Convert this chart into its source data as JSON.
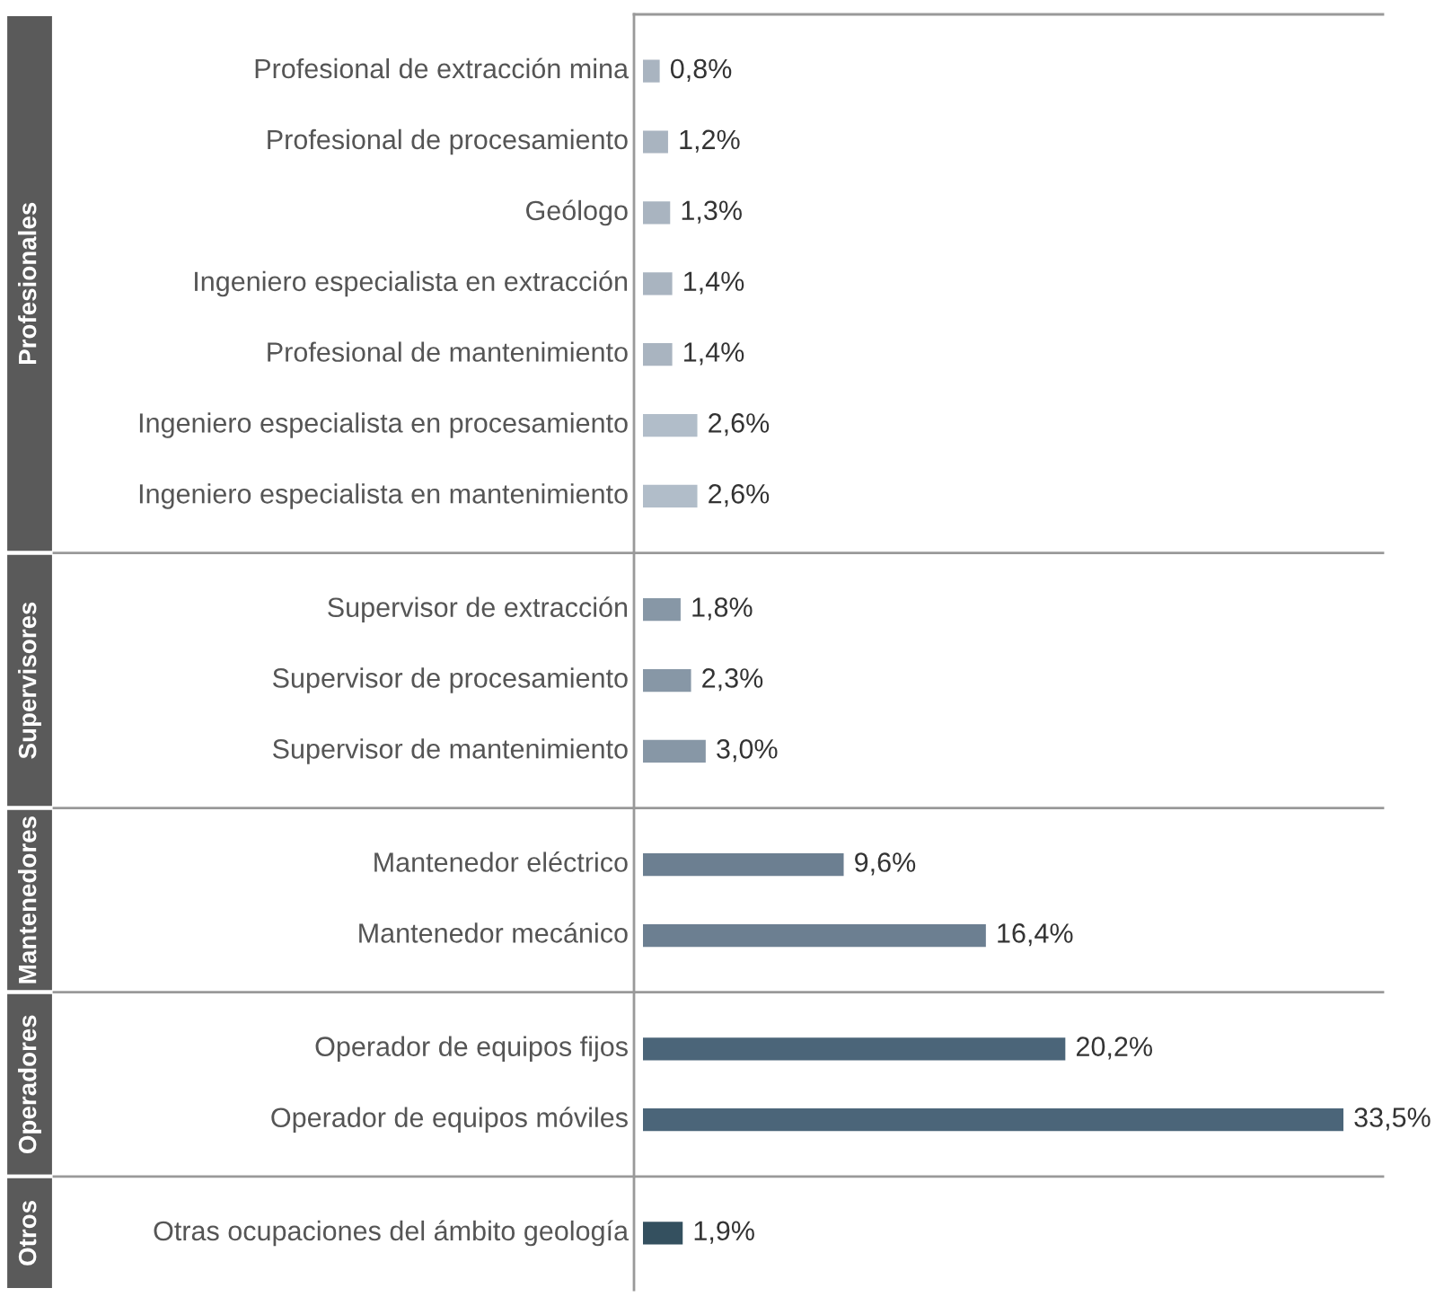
{
  "chart_data": [
    {
      "type": "bar",
      "orientation": "horizontal",
      "ylabel": "Profesionales",
      "categories": [
        "Profesional de extracción mina",
        "Profesional de procesamiento",
        "Geólogo",
        "Ingeniero especialista en extracción",
        "Profesional de mantenimiento",
        "Ingeniero especialista en procesamiento",
        "Ingeniero especialista en mantenimiento"
      ],
      "values": [
        0.8,
        1.2,
        1.3,
        1.4,
        1.4,
        2.6,
        2.6
      ],
      "value_labels": [
        "0,8%",
        "1,2%",
        "1,3%",
        "1,4%",
        "1,4%",
        "2,6%",
        "2,6%"
      ],
      "colors": [
        "#a9b4c0",
        "#a9b4c0",
        "#a9b4c0",
        "#a9b4c0",
        "#a9b4c0",
        "#b1bdc9",
        "#b1bdc9"
      ]
    },
    {
      "type": "bar",
      "orientation": "horizontal",
      "ylabel": "Supervisores",
      "categories": [
        "Supervisor de extracción",
        "Supervisor de procesamiento",
        "Supervisor de mantenimiento"
      ],
      "values": [
        1.8,
        2.3,
        3.0
      ],
      "value_labels": [
        "1,8%",
        "2,3%",
        "3,0%"
      ],
      "colors": [
        "#8797a6",
        "#8797a6",
        "#8797a6"
      ]
    },
    {
      "type": "bar",
      "orientation": "horizontal",
      "ylabel": "Mantenedores",
      "categories": [
        "Mantenedor eléctrico",
        "Mantenedor mecánico"
      ],
      "values": [
        9.6,
        16.4
      ],
      "value_labels": [
        "9,6%",
        "16,4%"
      ],
      "colors": [
        "#6c7f91",
        "#6c7f91"
      ]
    },
    {
      "type": "bar",
      "orientation": "horizontal",
      "ylabel": "Operadores",
      "categories": [
        "Operador de equipos fijos",
        "Operador de equipos móviles"
      ],
      "values": [
        20.2,
        33.5
      ],
      "value_labels": [
        "20,2%",
        "33,5%"
      ],
      "colors": [
        "#4b6579",
        "#4b6579"
      ]
    },
    {
      "type": "bar",
      "orientation": "horizontal",
      "ylabel": "Otros",
      "categories": [
        "Otras ocupaciones del ámbito geología"
      ],
      "values": [
        1.9
      ],
      "value_labels": [
        "1,9%"
      ],
      "colors": [
        "#34505f"
      ]
    }
  ]
}
